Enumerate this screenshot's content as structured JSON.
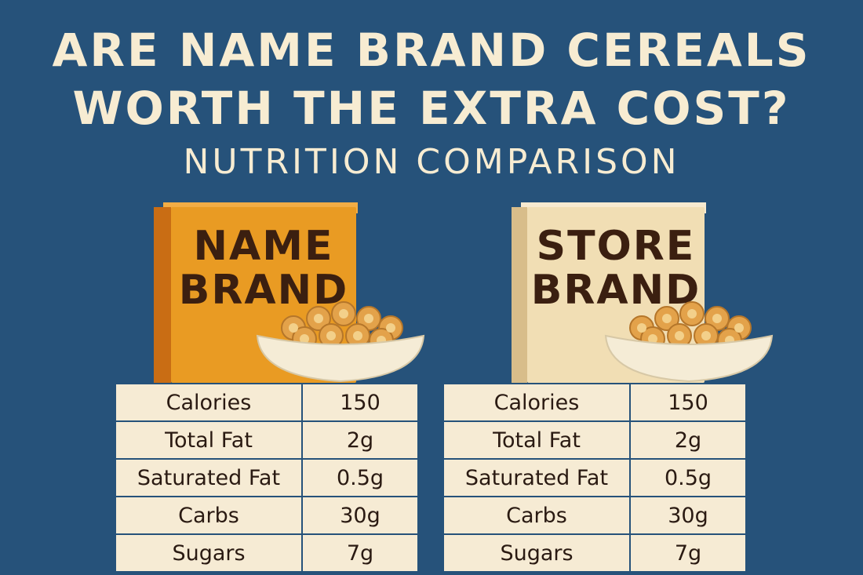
{
  "heading": {
    "line1": "ARE NAME BRAND CEREALS",
    "line2": "WORTH THE EXTRA COST?",
    "subtitle": "NUTRITION COMPARISON"
  },
  "name_brand": {
    "box_line1": "NAME",
    "box_line2": "BRAND",
    "box_color": "#e8961f",
    "rows": [
      {
        "label": "Calories",
        "value": "150"
      },
      {
        "label": "Total Fat",
        "value": "2g"
      },
      {
        "label": "Saturated Fat",
        "value": "0.5g"
      },
      {
        "label": "Carbs",
        "value": "30g"
      },
      {
        "label": "Sugars",
        "value": "7g"
      }
    ]
  },
  "store_brand": {
    "box_line1": "STORE",
    "box_line2": "BRAND",
    "box_color": "#f2dfb6",
    "rows": [
      {
        "label": "Calories",
        "value": "150"
      },
      {
        "label": "Total Fat",
        "value": "2g"
      },
      {
        "label": "Saturated Fat",
        "value": "0.5g"
      },
      {
        "label": "Carbs",
        "value": "30g"
      },
      {
        "label": "Sugars",
        "value": "7g"
      }
    ]
  }
}
